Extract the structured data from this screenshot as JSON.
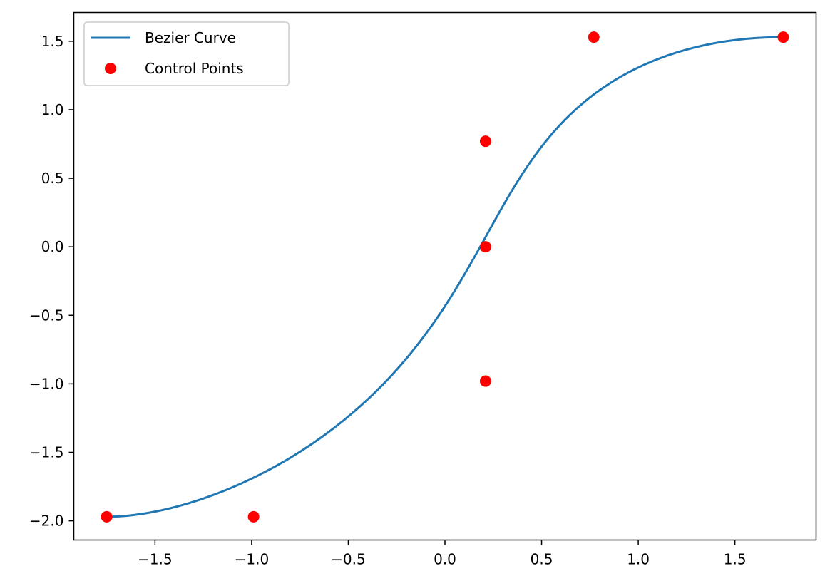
{
  "chart_data": {
    "type": "line",
    "title": "",
    "xlabel": "",
    "ylabel": "",
    "xlim": [
      -1.92,
      1.92
    ],
    "ylim": [
      -2.14,
      1.71
    ],
    "grid": false,
    "legend_position": "upper left",
    "x_ticks": [
      -1.5,
      -1.0,
      -0.5,
      0.0,
      0.5,
      1.0,
      1.5
    ],
    "x_tick_labels": [
      "−1.5",
      "−1.0",
      "−0.5",
      "0.0",
      "0.5",
      "1.0",
      "1.5"
    ],
    "y_ticks": [
      -2.0,
      -1.5,
      -1.0,
      -0.5,
      0.0,
      0.5,
      1.0,
      1.5
    ],
    "y_tick_labels": [
      "−2.0",
      "−1.5",
      "−1.0",
      "−0.5",
      "0.0",
      "0.5",
      "1.0",
      "1.5"
    ],
    "series": [
      {
        "name": "Bezier Curve",
        "kind": "line",
        "color": "#1f77b4",
        "bezier_control_points": [
          [
            -1.75,
            -1.97
          ],
          [
            -0.99,
            -1.97
          ],
          [
            0.21,
            -0.98
          ],
          [
            0.21,
            0.0
          ],
          [
            0.21,
            0.77
          ],
          [
            0.77,
            1.53
          ],
          [
            1.75,
            1.53
          ]
        ]
      },
      {
        "name": "Control Points",
        "kind": "scatter",
        "color": "#ff0000",
        "points": [
          [
            -1.75,
            -1.97
          ],
          [
            -0.99,
            -1.97
          ],
          [
            0.21,
            -0.98
          ],
          [
            0.21,
            0.0
          ],
          [
            0.21,
            0.77
          ],
          [
            0.77,
            1.53
          ],
          [
            1.75,
            1.53
          ]
        ]
      }
    ]
  }
}
